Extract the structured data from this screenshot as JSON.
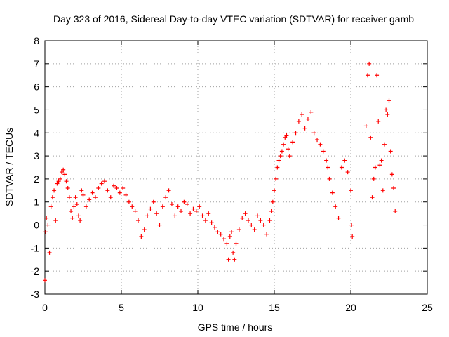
{
  "chart_data": {
    "type": "scatter",
    "title": "Day 323 of 2016, Sidereal Day-to-day VTEC variation (SDTVAR) for receiver gamb",
    "xlabel": "GPS time / hours",
    "ylabel": "SDTVAR / TECUs",
    "xlim": [
      0,
      25
    ],
    "ylim": [
      -3,
      8
    ],
    "x_ticks": [
      "0",
      "5",
      "10",
      "15",
      "20",
      "25"
    ],
    "y_ticks": [
      "-3",
      "-2",
      "-1",
      "0",
      "1",
      "2",
      "3",
      "4",
      "5",
      "6",
      "7",
      "8"
    ],
    "grid": true,
    "marker": "+",
    "series": [
      {
        "name": "SDTVAR",
        "color": "#ff0000",
        "x": [
          0.0,
          0.05,
          0.1,
          0.2,
          0.3,
          0.4,
          0.5,
          0.6,
          0.7,
          0.8,
          0.9,
          1.0,
          1.1,
          1.2,
          1.3,
          1.4,
          1.5,
          1.6,
          1.7,
          1.8,
          1.9,
          2.0,
          2.1,
          2.2,
          2.3,
          2.4,
          2.5,
          2.7,
          2.9,
          3.1,
          3.3,
          3.5,
          3.7,
          3.9,
          4.1,
          4.3,
          4.5,
          4.7,
          4.9,
          5.1,
          5.3,
          5.5,
          5.7,
          5.9,
          6.1,
          6.3,
          6.5,
          6.7,
          6.9,
          7.1,
          7.3,
          7.5,
          7.7,
          7.9,
          8.1,
          8.3,
          8.5,
          8.7,
          8.9,
          9.1,
          9.3,
          9.5,
          9.7,
          9.9,
          10.1,
          10.3,
          10.5,
          10.7,
          10.9,
          11.1,
          11.3,
          11.5,
          11.7,
          11.9,
          12.0,
          12.1,
          12.2,
          12.3,
          12.4,
          12.5,
          12.7,
          12.9,
          13.1,
          13.3,
          13.5,
          13.7,
          13.9,
          14.1,
          14.3,
          14.5,
          14.7,
          14.8,
          14.9,
          15.0,
          15.1,
          15.2,
          15.3,
          15.4,
          15.5,
          15.6,
          15.7,
          15.8,
          15.9,
          16.0,
          16.2,
          16.4,
          16.6,
          16.8,
          17.0,
          17.2,
          17.4,
          17.6,
          17.8,
          18.0,
          18.2,
          18.4,
          18.5,
          18.6,
          18.8,
          19.0,
          19.2,
          19.4,
          19.6,
          19.8,
          20.0,
          20.05,
          20.1,
          21.0,
          21.1,
          21.2,
          21.3,
          21.4,
          21.5,
          21.6,
          21.7,
          21.8,
          21.9,
          22.0,
          22.1,
          22.2,
          22.3,
          22.4,
          22.5,
          22.6,
          22.7,
          22.8,
          22.9
        ],
        "y": [
          -2.4,
          -0.3,
          0.3,
          0.0,
          -1.2,
          0.8,
          1.2,
          1.5,
          0.2,
          1.8,
          1.9,
          2.0,
          2.3,
          2.4,
          2.2,
          1.9,
          1.6,
          1.2,
          0.6,
          0.3,
          0.8,
          1.2,
          0.9,
          0.4,
          0.2,
          1.5,
          1.3,
          0.8,
          1.1,
          1.4,
          1.2,
          1.6,
          1.8,
          1.9,
          1.5,
          1.2,
          1.7,
          1.6,
          1.4,
          1.6,
          1.3,
          1.0,
          0.8,
          0.6,
          0.2,
          -0.5,
          -0.2,
          0.4,
          0.7,
          1.0,
          0.5,
          0.0,
          0.8,
          1.2,
          1.5,
          0.9,
          0.4,
          0.8,
          0.6,
          1.0,
          0.9,
          0.5,
          0.7,
          0.6,
          0.8,
          0.4,
          0.2,
          0.5,
          0.1,
          -0.1,
          -0.3,
          -0.4,
          -0.6,
          -0.8,
          -1.5,
          -0.5,
          -0.3,
          -1.2,
          -1.5,
          -0.8,
          -0.2,
          0.3,
          0.5,
          0.2,
          0.0,
          -0.2,
          0.4,
          0.2,
          0.0,
          -0.4,
          0.2,
          0.6,
          1.0,
          1.5,
          2.0,
          2.5,
          2.8,
          3.0,
          3.2,
          3.5,
          3.8,
          3.9,
          3.3,
          3.0,
          3.6,
          4.0,
          4.5,
          4.8,
          4.2,
          4.6,
          4.9,
          4.0,
          3.7,
          3.5,
          3.2,
          2.8,
          2.5,
          2.0,
          1.4,
          0.8,
          0.3,
          2.5,
          2.8,
          2.3,
          1.5,
          0.0,
          -0.5,
          4.3,
          6.5,
          7.0,
          3.8,
          1.2,
          2.0,
          2.5,
          6.5,
          4.5,
          2.6,
          2.8,
          1.5,
          3.5,
          5.0,
          4.8,
          5.4,
          3.2,
          2.2,
          1.6,
          0.6
        ]
      }
    ]
  }
}
